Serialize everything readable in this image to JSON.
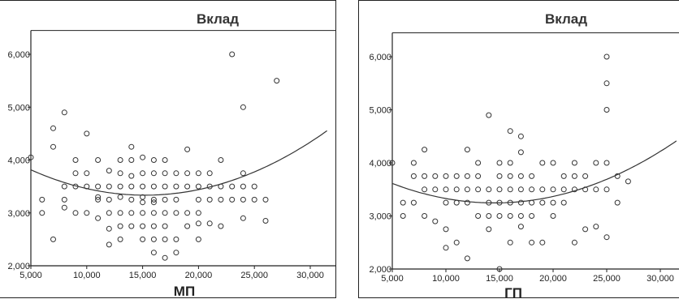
{
  "chart_data": [
    {
      "type": "scatter",
      "title": "Вклад",
      "xlabel": "МП",
      "ylabel": "",
      "xlim": [
        5000,
        31000
      ],
      "ylim": [
        2000,
        6500
      ],
      "xticks": [
        "5,000",
        "10,000",
        "15,000",
        "20,000",
        "25,000",
        "30,000"
      ],
      "yticks": [
        "2,000",
        "3,000",
        "4,000",
        "5,000",
        "6,000"
      ],
      "grid": false,
      "fit": {
        "type": "quadratic",
        "points": [
          [
            5000,
            3800
          ],
          [
            10000,
            3500
          ],
          [
            15000,
            3300
          ],
          [
            20000,
            3450
          ],
          [
            31000,
            4480
          ]
        ]
      },
      "colors": {
        "marker": "#333333",
        "curve": "#333333",
        "axis": "#222222"
      },
      "x": [
        5000,
        6000,
        6000,
        7000,
        7000,
        7000,
        8000,
        8000,
        8000,
        8000,
        9000,
        9000,
        9000,
        9000,
        10000,
        10000,
        10000,
        10000,
        11000,
        11000,
        11000,
        11000,
        11000,
        12000,
        12000,
        12000,
        12000,
        12000,
        12000,
        13000,
        13000,
        13000,
        13000,
        13000,
        13000,
        13000,
        14000,
        14000,
        14000,
        14000,
        14000,
        14000,
        14000,
        15000,
        15000,
        15000,
        15000,
        15000,
        15000,
        15000,
        15000,
        16000,
        16000,
        16000,
        16000,
        16000,
        16000,
        16000,
        16000,
        16000,
        17000,
        17000,
        17000,
        17000,
        17000,
        17000,
        17000,
        17000,
        18000,
        18000,
        18000,
        18000,
        18000,
        18000,
        19000,
        19000,
        19000,
        19000,
        19000,
        20000,
        20000,
        20000,
        20000,
        20000,
        20000,
        21000,
        21000,
        21000,
        21000,
        22000,
        22000,
        22000,
        22000,
        23000,
        23000,
        23000,
        24000,
        24000,
        24000,
        24000,
        24000,
        25000,
        25000,
        26000,
        26000,
        27000
      ],
      "y": [
        4050,
        3250,
        3000,
        4600,
        4250,
        2500,
        4900,
        3500,
        3250,
        3100,
        4000,
        3750,
        3500,
        3000,
        4500,
        3750,
        3500,
        3000,
        4000,
        3500,
        3300,
        3250,
        2900,
        3800,
        3500,
        3250,
        3000,
        2700,
        2400,
        4000,
        3750,
        3500,
        3300,
        3000,
        2750,
        2500,
        4250,
        4000,
        3700,
        3500,
        3250,
        3000,
        2750,
        4050,
        3750,
        3500,
        3300,
        3200,
        3000,
        2750,
        2500,
        4000,
        3750,
        3500,
        3250,
        3200,
        3000,
        2750,
        2500,
        2250,
        4000,
        3750,
        3500,
        3250,
        3000,
        2750,
        2500,
        2150,
        3750,
        3500,
        3250,
        3000,
        2500,
        2250,
        4200,
        3750,
        3500,
        3000,
        2750,
        3750,
        3500,
        3250,
        3000,
        2800,
        2500,
        3750,
        3500,
        3250,
        2800,
        4000,
        3500,
        3250,
        2750,
        6000,
        3500,
        3250,
        5000,
        3750,
        3500,
        3250,
        2900,
        3500,
        3250,
        3250,
        2850,
        5500
      ]
    },
    {
      "type": "scatter",
      "title": "Вклад",
      "xlabel": "ГП",
      "ylabel": "",
      "xlim": [
        5000,
        31000
      ],
      "ylim": [
        2000,
        6500
      ],
      "xticks": [
        "5,000",
        "10,000",
        "15,000",
        "20,000",
        "25,000",
        "30,000"
      ],
      "yticks": [
        "2,000",
        "3,000",
        "4,000",
        "5,000",
        "6,000"
      ],
      "grid": false,
      "fit": {
        "type": "quadratic",
        "points": [
          [
            5000,
            3600
          ],
          [
            10000,
            3350
          ],
          [
            15000,
            3250
          ],
          [
            20000,
            3350
          ],
          [
            31000,
            4350
          ]
        ]
      },
      "colors": {
        "marker": "#333333",
        "curve": "#333333",
        "axis": "#222222"
      },
      "x": [
        5000,
        6000,
        6000,
        7000,
        7000,
        7000,
        8000,
        8000,
        8000,
        8000,
        9000,
        9000,
        9000,
        10000,
        10000,
        10000,
        10000,
        10000,
        11000,
        11000,
        11000,
        11000,
        12000,
        12000,
        12000,
        12000,
        12000,
        13000,
        13000,
        13000,
        13000,
        14000,
        14000,
        14000,
        14000,
        14000,
        15000,
        15000,
        15000,
        15000,
        15000,
        15000,
        16000,
        16000,
        16000,
        16000,
        16000,
        16000,
        16000,
        17000,
        17000,
        17000,
        17000,
        17000,
        17000,
        17000,
        18000,
        18000,
        18000,
        18000,
        18000,
        19000,
        19000,
        19000,
        19000,
        20000,
        20000,
        20000,
        20000,
        21000,
        21000,
        21000,
        22000,
        22000,
        22000,
        22000,
        23000,
        23000,
        23000,
        24000,
        24000,
        24000,
        25000,
        25000,
        25000,
        25000,
        25000,
        25000,
        26000,
        26000,
        27000
      ],
      "y": [
        4000,
        3250,
        3000,
        4000,
        3750,
        3250,
        4250,
        3750,
        3500,
        3000,
        3750,
        3500,
        2900,
        3750,
        3500,
        3250,
        2750,
        2400,
        3750,
        3500,
        3250,
        2500,
        4250,
        3750,
        3500,
        3250,
        2200,
        4000,
        3750,
        3500,
        3000,
        4900,
        3500,
        3250,
        3000,
        2750,
        4000,
        3750,
        3500,
        3250,
        3000,
        2000,
        4600,
        4000,
        3750,
        3500,
        3250,
        3000,
        2500,
        4500,
        4200,
        3750,
        3500,
        3250,
        3000,
        2800,
        3750,
        3500,
        3250,
        3000,
        2500,
        4000,
        3500,
        3250,
        2500,
        4000,
        3500,
        3250,
        3000,
        3750,
        3500,
        3250,
        4000,
        3750,
        3500,
        2500,
        3750,
        3500,
        2750,
        4000,
        3500,
        2800,
        6000,
        5500,
        5000,
        4000,
        3500,
        2600,
        3750,
        3250,
        3650
      ]
    }
  ]
}
